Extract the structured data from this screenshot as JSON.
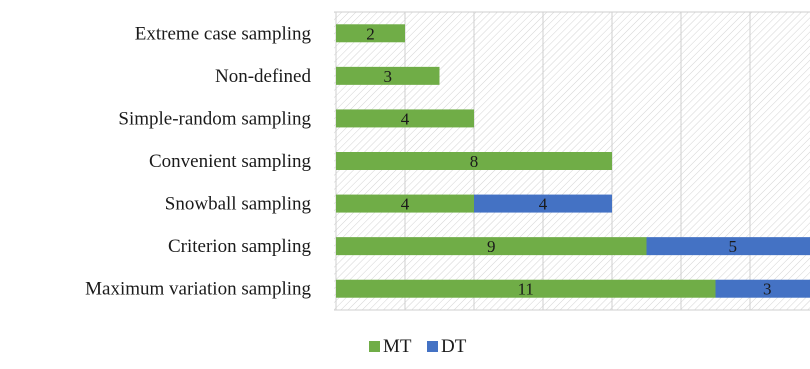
{
  "chart_data": {
    "type": "bar",
    "orientation": "horizontal",
    "stacked": true,
    "categories": [
      "Extreme case sampling",
      "Non-defined",
      "Simple-random sampling",
      "Convenient sampling",
      "Snowball sampling",
      "Criterion sampling",
      "Maximum variation sampling"
    ],
    "series": [
      {
        "name": "MT",
        "color": "#70ad47",
        "values": [
          2,
          3,
          4,
          8,
          4,
          9,
          11
        ]
      },
      {
        "name": "DT",
        "color": "#4472c4",
        "values": [
          0,
          0,
          0,
          0,
          4,
          5,
          3
        ]
      }
    ],
    "title": "",
    "xlabel": "",
    "ylabel": "",
    "xlim": [
      0,
      14
    ],
    "grid": true,
    "legend": "bottom"
  }
}
